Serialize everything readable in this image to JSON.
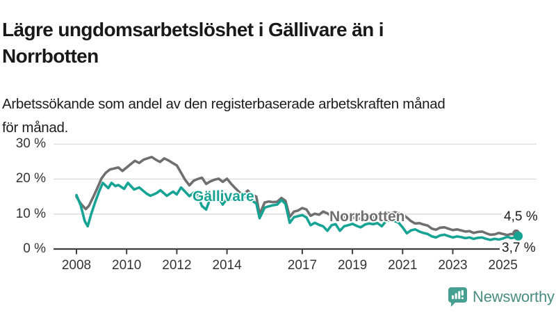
{
  "title": {
    "line1": "Lägre ungdomsarbetslöshet i Gällivare än i",
    "line2": "Norrbotten"
  },
  "subtitle": {
    "line1": "Arbetssökande som andel av den registerbaserade arbetskraften månad",
    "line2": "för månad."
  },
  "branding": {
    "name": "Newsworthy",
    "icon": "newsworthy-speech-bubble-bars",
    "icon_color": "#46a091",
    "text_color": "#4a8c82"
  },
  "colors": {
    "gallivare": "#16a394",
    "norrbotten": "#6f6f6f",
    "axis_text": "#333333",
    "gridline": "#d9d9d9",
    "axis_line": "#3f3f3f",
    "background": "#ffffff"
  },
  "chart_data": {
    "type": "line",
    "title": "Lägre ungdomsarbetslöshet i Gällivare än i Norrbotten",
    "subtitle": "Arbetssökande som andel av den registerbaserade arbetskraften månad för månad.",
    "xlabel": "",
    "ylabel": "",
    "x_range": [
      2007.9,
      2026.3
    ],
    "ylim": [
      0,
      32
    ],
    "grid": "horizontal",
    "legend_position": "inline-labels",
    "y_ticks": [
      {
        "v": 0,
        "label": "0 %"
      },
      {
        "v": 10,
        "label": "10 %"
      },
      {
        "v": 20,
        "label": "20 %"
      },
      {
        "v": 30,
        "label": "30 %"
      }
    ],
    "x_ticks": [
      {
        "v": 2008,
        "label": "2008"
      },
      {
        "v": 2010,
        "label": "2010"
      },
      {
        "v": 2012,
        "label": "2012"
      },
      {
        "v": 2014,
        "label": "2014"
      },
      {
        "v": 2017,
        "label": "2017"
      },
      {
        "v": 2019,
        "label": "2019"
      },
      {
        "v": 2021,
        "label": "2021"
      },
      {
        "v": 2023,
        "label": "2023"
      },
      {
        "v": 2025,
        "label": "2025"
      }
    ],
    "series": [
      {
        "name": "Norrbotten",
        "color": "#6f6f6f",
        "end_value": 4.5,
        "end_label": "4,5 %",
        "points": [
          [
            2008.0,
            15.0
          ],
          [
            2008.17,
            13.0
          ],
          [
            2008.37,
            11.4
          ],
          [
            2008.5,
            12.4
          ],
          [
            2008.67,
            14.9
          ],
          [
            2008.83,
            17.4
          ],
          [
            2009.0,
            20.2
          ],
          [
            2009.17,
            21.8
          ],
          [
            2009.33,
            22.7
          ],
          [
            2009.5,
            23.0
          ],
          [
            2009.67,
            23.3
          ],
          [
            2009.83,
            22.3
          ],
          [
            2010.0,
            23.3
          ],
          [
            2010.17,
            24.3
          ],
          [
            2010.33,
            25.2
          ],
          [
            2010.5,
            24.6
          ],
          [
            2010.67,
            25.5
          ],
          [
            2010.83,
            25.9
          ],
          [
            2011.0,
            26.3
          ],
          [
            2011.17,
            25.5
          ],
          [
            2011.33,
            24.9
          ],
          [
            2011.5,
            25.9
          ],
          [
            2011.67,
            25.3
          ],
          [
            2011.83,
            24.6
          ],
          [
            2012.0,
            23.9
          ],
          [
            2012.17,
            21.8
          ],
          [
            2012.33,
            19.8
          ],
          [
            2012.5,
            18.2
          ],
          [
            2012.67,
            19.5
          ],
          [
            2012.83,
            20.0
          ],
          [
            2013.0,
            20.4
          ],
          [
            2013.17,
            18.6
          ],
          [
            2013.33,
            19.3
          ],
          [
            2013.5,
            19.8
          ],
          [
            2013.67,
            20.1
          ],
          [
            2013.83,
            19.2
          ],
          [
            2014.0,
            20.1
          ],
          [
            2014.17,
            18.6
          ],
          [
            2014.33,
            17.4
          ],
          [
            2014.5,
            16.2
          ],
          [
            2014.67,
            15.7
          ],
          [
            2014.83,
            16.7
          ],
          [
            2015.0,
            15.5
          ],
          [
            2015.17,
            15.0
          ],
          [
            2015.3,
            9.9
          ],
          [
            2015.5,
            13.3
          ],
          [
            2015.67,
            13.6
          ],
          [
            2015.83,
            13.4
          ],
          [
            2016.0,
            13.5
          ],
          [
            2016.17,
            14.6
          ],
          [
            2016.33,
            13.8
          ],
          [
            2016.5,
            9.2
          ],
          [
            2016.67,
            10.7
          ],
          [
            2016.83,
            11.0
          ],
          [
            2017.0,
            11.7
          ],
          [
            2017.17,
            11.3
          ],
          [
            2017.33,
            9.5
          ],
          [
            2017.5,
            10.1
          ],
          [
            2017.67,
            9.8
          ],
          [
            2017.83,
            10.7
          ],
          [
            2018.0,
            10.2
          ],
          [
            2018.17,
            9.4
          ],
          [
            2018.33,
            8.8
          ],
          [
            2018.5,
            9.5
          ],
          [
            2018.67,
            9.2
          ],
          [
            2018.83,
            8.8
          ],
          [
            2019.0,
            9.1
          ],
          [
            2019.17,
            8.5
          ],
          [
            2019.33,
            8.8
          ],
          [
            2019.5,
            9.0
          ],
          [
            2019.67,
            8.8
          ],
          [
            2019.83,
            9.1
          ],
          [
            2020.0,
            9.3
          ],
          [
            2020.17,
            9.9
          ],
          [
            2020.33,
            10.4
          ],
          [
            2020.5,
            10.2
          ],
          [
            2020.67,
            10.5
          ],
          [
            2020.83,
            10.3
          ],
          [
            2021.0,
            9.9
          ],
          [
            2021.17,
            9.0
          ],
          [
            2021.33,
            8.0
          ],
          [
            2021.5,
            7.3
          ],
          [
            2021.67,
            7.4
          ],
          [
            2021.83,
            7.0
          ],
          [
            2022.0,
            6.7
          ],
          [
            2022.17,
            5.8
          ],
          [
            2022.33,
            5.5
          ],
          [
            2022.5,
            6.1
          ],
          [
            2022.67,
            6.2
          ],
          [
            2022.83,
            5.8
          ],
          [
            2023.0,
            5.4
          ],
          [
            2023.17,
            5.6
          ],
          [
            2023.33,
            5.3
          ],
          [
            2023.5,
            5.0
          ],
          [
            2023.67,
            5.1
          ],
          [
            2023.83,
            4.6
          ],
          [
            2024.0,
            4.9
          ],
          [
            2024.17,
            5.0
          ],
          [
            2024.33,
            4.5
          ],
          [
            2024.5,
            4.1
          ],
          [
            2024.67,
            4.2
          ],
          [
            2024.83,
            4.6
          ],
          [
            2025.0,
            4.3
          ],
          [
            2025.17,
            4.0
          ],
          [
            2025.33,
            4.3
          ],
          [
            2025.5,
            4.1
          ],
          [
            2025.58,
            4.5
          ]
        ]
      },
      {
        "name": "Gällivare",
        "color": "#16a394",
        "end_value": 3.7,
        "end_label": "3,7 %",
        "points": [
          [
            2008.0,
            15.4
          ],
          [
            2008.17,
            12.5
          ],
          [
            2008.33,
            8.0
          ],
          [
            2008.45,
            6.5
          ],
          [
            2008.58,
            9.8
          ],
          [
            2008.75,
            13.5
          ],
          [
            2008.9,
            16.4
          ],
          [
            2009.05,
            18.9
          ],
          [
            2009.27,
            17.4
          ],
          [
            2009.4,
            18.9
          ],
          [
            2009.55,
            18.0
          ],
          [
            2009.67,
            18.3
          ],
          [
            2009.9,
            17.2
          ],
          [
            2010.05,
            18.9
          ],
          [
            2010.3,
            17.0
          ],
          [
            2010.5,
            17.6
          ],
          [
            2010.8,
            15.8
          ],
          [
            2010.95,
            15.2
          ],
          [
            2011.2,
            16.0
          ],
          [
            2011.35,
            16.8
          ],
          [
            2011.6,
            15.2
          ],
          [
            2011.85,
            16.4
          ],
          [
            2012.0,
            15.6
          ],
          [
            2012.17,
            17.6
          ],
          [
            2012.33,
            16.4
          ],
          [
            2012.5,
            15.1
          ],
          [
            2012.67,
            16.1
          ],
          [
            2012.83,
            15.4
          ],
          [
            2013.0,
            12.3
          ],
          [
            2013.17,
            11.3
          ],
          [
            2013.33,
            14.4
          ],
          [
            2013.5,
            14.8
          ],
          [
            2013.67,
            14.7
          ],
          [
            2013.83,
            12.7
          ],
          [
            2014.0,
            14.4
          ],
          [
            2014.17,
            14.2
          ],
          [
            2014.33,
            15.4
          ],
          [
            2014.5,
            14.4
          ],
          [
            2014.67,
            14.8
          ],
          [
            2014.83,
            15.1
          ],
          [
            2015.0,
            13.8
          ],
          [
            2015.17,
            13.0
          ],
          [
            2015.3,
            8.8
          ],
          [
            2015.5,
            11.8
          ],
          [
            2015.67,
            12.2
          ],
          [
            2015.83,
            12.5
          ],
          [
            2016.0,
            12.7
          ],
          [
            2016.17,
            14.0
          ],
          [
            2016.33,
            12.9
          ],
          [
            2016.5,
            7.5
          ],
          [
            2016.67,
            9.1
          ],
          [
            2016.83,
            9.4
          ],
          [
            2017.0,
            9.7
          ],
          [
            2017.17,
            9.0
          ],
          [
            2017.33,
            6.8
          ],
          [
            2017.5,
            7.5
          ],
          [
            2017.67,
            6.9
          ],
          [
            2017.83,
            6.5
          ],
          [
            2018.0,
            5.2
          ],
          [
            2018.17,
            6.8
          ],
          [
            2018.33,
            7.1
          ],
          [
            2018.5,
            5.2
          ],
          [
            2018.67,
            6.5
          ],
          [
            2018.83,
            6.8
          ],
          [
            2019.0,
            7.2
          ],
          [
            2019.17,
            6.6
          ],
          [
            2019.33,
            6.2
          ],
          [
            2019.5,
            7.0
          ],
          [
            2019.67,
            7.3
          ],
          [
            2019.83,
            7.1
          ],
          [
            2020.0,
            7.4
          ],
          [
            2020.17,
            6.5
          ],
          [
            2020.33,
            7.9
          ],
          [
            2020.5,
            8.3
          ],
          [
            2020.67,
            8.0
          ],
          [
            2020.83,
            7.6
          ],
          [
            2021.0,
            6.2
          ],
          [
            2021.17,
            4.5
          ],
          [
            2021.33,
            5.3
          ],
          [
            2021.5,
            5.6
          ],
          [
            2021.67,
            5.0
          ],
          [
            2021.83,
            4.6
          ],
          [
            2022.0,
            4.3
          ],
          [
            2022.17,
            3.6
          ],
          [
            2022.33,
            3.3
          ],
          [
            2022.5,
            3.9
          ],
          [
            2022.67,
            4.1
          ],
          [
            2022.83,
            3.7
          ],
          [
            2023.0,
            3.3
          ],
          [
            2023.17,
            3.6
          ],
          [
            2023.33,
            3.4
          ],
          [
            2023.5,
            3.1
          ],
          [
            2023.67,
            3.3
          ],
          [
            2023.83,
            2.9
          ],
          [
            2024.0,
            3.2
          ],
          [
            2024.17,
            3.3
          ],
          [
            2024.33,
            2.9
          ],
          [
            2024.5,
            2.6
          ],
          [
            2024.67,
            2.9
          ],
          [
            2024.83,
            2.7
          ],
          [
            2025.0,
            3.0
          ],
          [
            2025.17,
            3.5
          ],
          [
            2025.33,
            3.1
          ],
          [
            2025.5,
            3.3
          ],
          [
            2025.58,
            3.7
          ]
        ]
      }
    ]
  }
}
